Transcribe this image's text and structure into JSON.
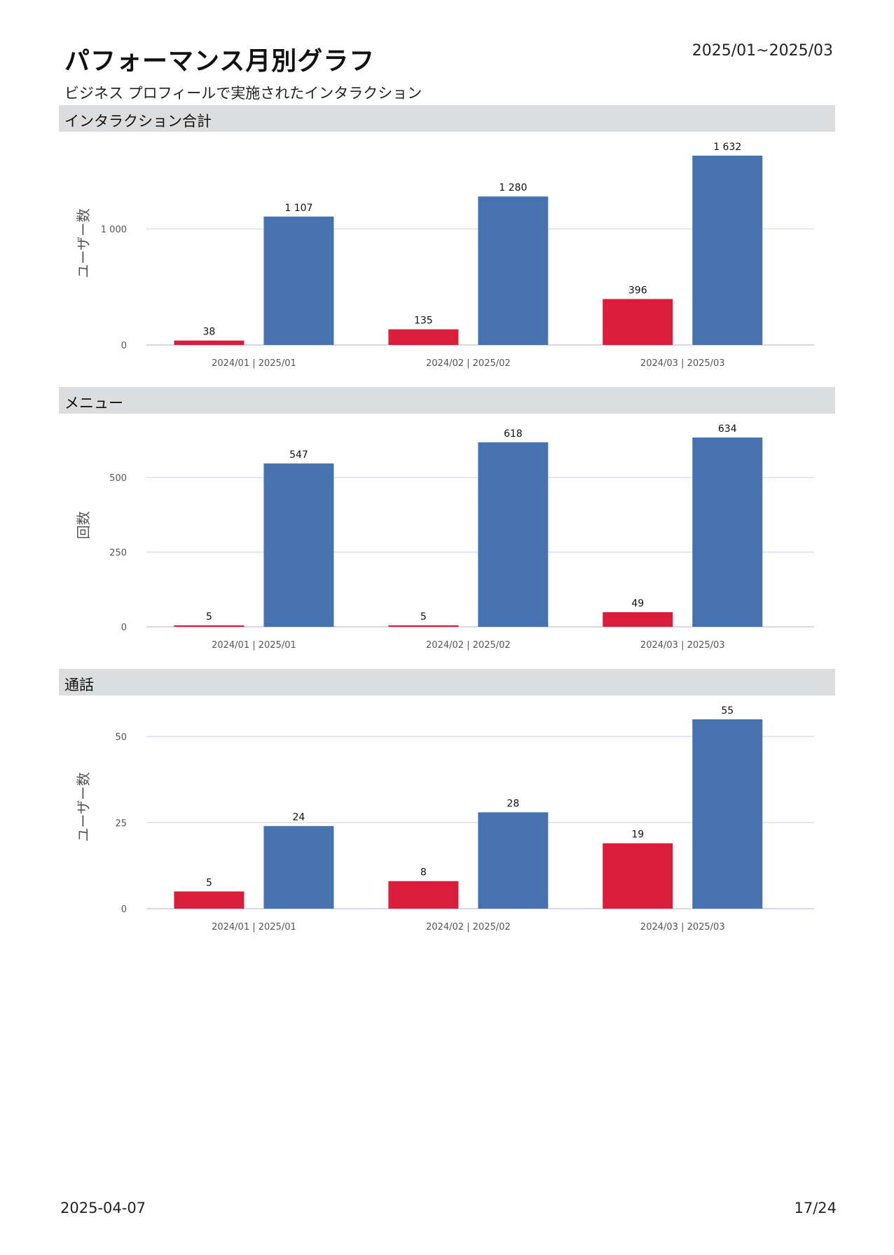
{
  "header": {
    "title": "パフォーマンス月別グラフ",
    "date_range": "2025/01~2025/03",
    "subtitle": "ビジネス プロフィールで実施されたインタラクション"
  },
  "colors": {
    "previous": "#d81e3a",
    "current": "#4673b0",
    "grid": "#dde0ea",
    "axis": "#c5cce0"
  },
  "chart_data": [
    {
      "type": "bar",
      "title": "インタラクション合計",
      "ylabel": "ユーザー数",
      "categories": [
        "2024/01 | 2025/01",
        "2024/02 | 2025/02",
        "2024/03 | 2025/03"
      ],
      "series": [
        {
          "name": "2024",
          "values": [
            38,
            135,
            396
          ],
          "labels": [
            "38",
            "135",
            "396"
          ]
        },
        {
          "name": "2025",
          "values": [
            1107,
            1280,
            1632
          ],
          "labels": [
            "1 107",
            "1 280",
            "1 632"
          ]
        }
      ],
      "yticks": [
        0,
        1000
      ],
      "ytick_labels": [
        "0",
        "1 000"
      ],
      "ylim": [
        0,
        1632
      ]
    },
    {
      "type": "bar",
      "title": "メニュー",
      "ylabel": "回数",
      "categories": [
        "2024/01 | 2025/01",
        "2024/02 | 2025/02",
        "2024/03 | 2025/03"
      ],
      "series": [
        {
          "name": "2024",
          "values": [
            5,
            5,
            49
          ],
          "labels": [
            "5",
            "5",
            "49"
          ]
        },
        {
          "name": "2025",
          "values": [
            547,
            618,
            634
          ],
          "labels": [
            "547",
            "618",
            "634"
          ]
        }
      ],
      "yticks": [
        0,
        250,
        500
      ],
      "ytick_labels": [
        "0",
        "250",
        "500"
      ],
      "ylim": [
        0,
        634
      ]
    },
    {
      "type": "bar",
      "title": "通話",
      "ylabel": "ユーザー数",
      "categories": [
        "2024/01 | 2025/01",
        "2024/02 | 2025/02",
        "2024/03 | 2025/03"
      ],
      "series": [
        {
          "name": "2024",
          "values": [
            5,
            8,
            19
          ],
          "labels": [
            "5",
            "8",
            "19"
          ]
        },
        {
          "name": "2025",
          "values": [
            24,
            28,
            55
          ],
          "labels": [
            "24",
            "28",
            "55"
          ]
        }
      ],
      "yticks": [
        0,
        25,
        50
      ],
      "ytick_labels": [
        "0",
        "25",
        "50"
      ],
      "ylim": [
        0,
        55
      ]
    }
  ],
  "footer": {
    "date": "2025-04-07",
    "page": "17/24"
  }
}
